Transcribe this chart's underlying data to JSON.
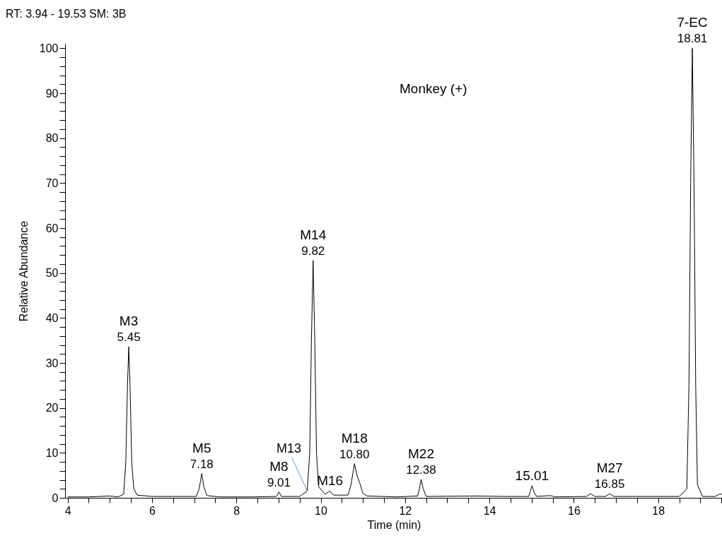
{
  "chart_data": {
    "type": "line",
    "title": "RT: 3.94 - 19.53   SM: 3B",
    "xlabel": "Time (min)",
    "ylabel": "Relative Abundance",
    "x": [
      4.0,
      4.5,
      5.0,
      5.2,
      5.33,
      5.38,
      5.42,
      5.45,
      5.48,
      5.52,
      5.57,
      5.65,
      6.0,
      6.5,
      7.05,
      7.12,
      7.18,
      7.23,
      7.3,
      7.6,
      8.4,
      8.95,
      9.01,
      9.07,
      9.5,
      9.68,
      9.74,
      9.78,
      9.82,
      9.86,
      9.9,
      9.95,
      10.1,
      10.22,
      10.3,
      10.65,
      10.72,
      10.8,
      10.86,
      10.93,
      11.0,
      11.1,
      11.8,
      12.3,
      12.34,
      12.38,
      12.43,
      12.5,
      13.65,
      14.4,
      14.93,
      14.97,
      15.01,
      15.06,
      15.12,
      15.45,
      15.55,
      16.3,
      16.4,
      16.5,
      16.75,
      16.85,
      16.95,
      18.5,
      18.68,
      18.73,
      18.77,
      18.81,
      18.85,
      18.89,
      18.93,
      19.05,
      19.35,
      19.45,
      19.53
    ],
    "series": [
      {
        "color": "#000000",
        "values": [
          0.2,
          0.2,
          0.4,
          0.2,
          0.8,
          8,
          25,
          33.6,
          25,
          8,
          2,
          0.6,
          0.3,
          0.3,
          0.3,
          2,
          5.4,
          2.5,
          0.5,
          0.2,
          0.2,
          0.3,
          1.3,
          0.3,
          0.3,
          1.5,
          10,
          35,
          52.8,
          35,
          10,
          2.5,
          0.8,
          1.5,
          0.6,
          0.6,
          3,
          7.6,
          5,
          3.2,
          1,
          0.4,
          0.2,
          0.4,
          2,
          4.1,
          2,
          0.3,
          0.4,
          0.3,
          0.3,
          1.5,
          2.7,
          1.2,
          0.3,
          0.5,
          0.2,
          0.3,
          0.9,
          0.3,
          0.3,
          0.9,
          0.3,
          0.3,
          2,
          25,
          70,
          100,
          70,
          25,
          3,
          0.3,
          0.3,
          0.8,
          0.8
        ]
      }
    ],
    "xlim": [
      3.94,
      19.53
    ],
    "xticks": [
      4,
      {
        "value": 4.5,
        "label": null
      },
      {
        "value": 5,
        "label": null
      },
      {
        "value": 5.5,
        "label": null
      },
      6,
      {
        "value": 6.5,
        "label": null
      },
      {
        "value": 7,
        "label": null
      },
      {
        "value": 7.5,
        "label": null
      },
      8,
      {
        "value": 8.5,
        "label": null
      },
      {
        "value": 9,
        "label": null
      },
      {
        "value": 9.5,
        "label": null
      },
      10,
      {
        "value": 10.5,
        "label": null
      },
      {
        "value": 11,
        "label": null
      },
      {
        "value": 11.5,
        "label": null
      },
      12,
      {
        "value": 12.5,
        "label": null
      },
      {
        "value": 13,
        "label": null
      },
      {
        "value": 13.5,
        "label": null
      },
      14,
      {
        "value": 14.5,
        "label": null
      },
      {
        "value": 15,
        "label": null
      },
      {
        "value": 15.5,
        "label": null
      },
      16,
      {
        "value": 16.5,
        "label": null
      },
      {
        "value": 17,
        "label": null
      },
      {
        "value": 17.5,
        "label": null
      },
      18,
      {
        "value": 18.5,
        "label": null
      },
      {
        "value": 19,
        "label": null
      },
      {
        "value": 19.5,
        "label": null
      }
    ],
    "ylim": [
      0,
      101
    ],
    "yticks": [
      0,
      {
        "value": 2,
        "label": null
      },
      {
        "value": 4,
        "label": null
      },
      {
        "value": 6,
        "label": null
      },
      {
        "value": 8,
        "label": null
      },
      10,
      {
        "value": 12,
        "label": null
      },
      {
        "value": 14,
        "label": null
      },
      {
        "value": 16,
        "label": null
      },
      {
        "value": 18,
        "label": null
      },
      20,
      {
        "value": 22,
        "label": null
      },
      {
        "value": 24,
        "label": null
      },
      {
        "value": 26,
        "label": null
      },
      {
        "value": 28,
        "label": null
      },
      30,
      {
        "value": 32,
        "label": null
      },
      {
        "value": 34,
        "label": null
      },
      {
        "value": 36,
        "label": null
      },
      {
        "value": 38,
        "label": null
      },
      40,
      {
        "value": 42,
        "label": null
      },
      {
        "value": 44,
        "label": null
      },
      {
        "value": 46,
        "label": null
      },
      {
        "value": 48,
        "label": null
      },
      50,
      {
        "value": 52,
        "label": null
      },
      {
        "value": 54,
        "label": null
      },
      {
        "value": 56,
        "label": null
      },
      {
        "value": 58,
        "label": null
      },
      60,
      {
        "value": 62,
        "label": null
      },
      {
        "value": 64,
        "label": null
      },
      {
        "value": 66,
        "label": null
      },
      {
        "value": 68,
        "label": null
      },
      70,
      {
        "value": 72,
        "label": null
      },
      {
        "value": 74,
        "label": null
      },
      {
        "value": 76,
        "label": null
      },
      {
        "value": 78,
        "label": null
      },
      80,
      {
        "value": 82,
        "label": null
      },
      {
        "value": 84,
        "label": null
      },
      {
        "value": 86,
        "label": null
      },
      {
        "value": 88,
        "label": null
      },
      90,
      {
        "value": 92,
        "label": null
      },
      {
        "value": 94,
        "label": null
      },
      {
        "value": 96,
        "label": null
      },
      {
        "value": 98,
        "label": null
      },
      100
    ],
    "grid": false,
    "marker": "none",
    "line_style": "solid",
    "annotations": [
      "Monkey (+)",
      {
        "text": "M3",
        "x": 5.45,
        "y": 33.6
      },
      {
        "text": "5.45",
        "x": 5.45,
        "y": 33.6
      },
      {
        "text": "M5",
        "x": 7.18,
        "y": 5.4
      },
      {
        "text": "7.18",
        "x": 7.18,
        "y": 5.4
      },
      {
        "text": "M8",
        "x": 9.01,
        "y": 1.3
      },
      {
        "text": "9.01",
        "x": 9.01,
        "y": 1.3
      },
      {
        "text": "M13",
        "x": 9.68,
        "y": 1.5
      },
      {
        "text": "M14",
        "x": 9.82,
        "y": 52.8
      },
      {
        "text": "9.82",
        "x": 9.82,
        "y": 52.8
      },
      {
        "text": "M16",
        "x": 10.22,
        "y": 1.5
      },
      {
        "text": "M18",
        "x": 10.8,
        "y": 7.6
      },
      {
        "text": "10.80",
        "x": 10.8,
        "y": 7.6
      },
      {
        "text": "M22",
        "x": 12.38,
        "y": 4.1
      },
      {
        "text": "12.38",
        "x": 12.38,
        "y": 4.1
      },
      {
        "text": "15.01",
        "x": 15.01,
        "y": 2.7
      },
      {
        "text": "M27",
        "x": 16.85,
        "y": 0.9
      },
      {
        "text": "16.85",
        "x": 16.85,
        "y": 0.9
      },
      {
        "text": "7-EC",
        "x": 18.81,
        "y": 100
      },
      {
        "text": "18.81",
        "x": 18.81,
        "y": 100
      }
    ]
  }
}
